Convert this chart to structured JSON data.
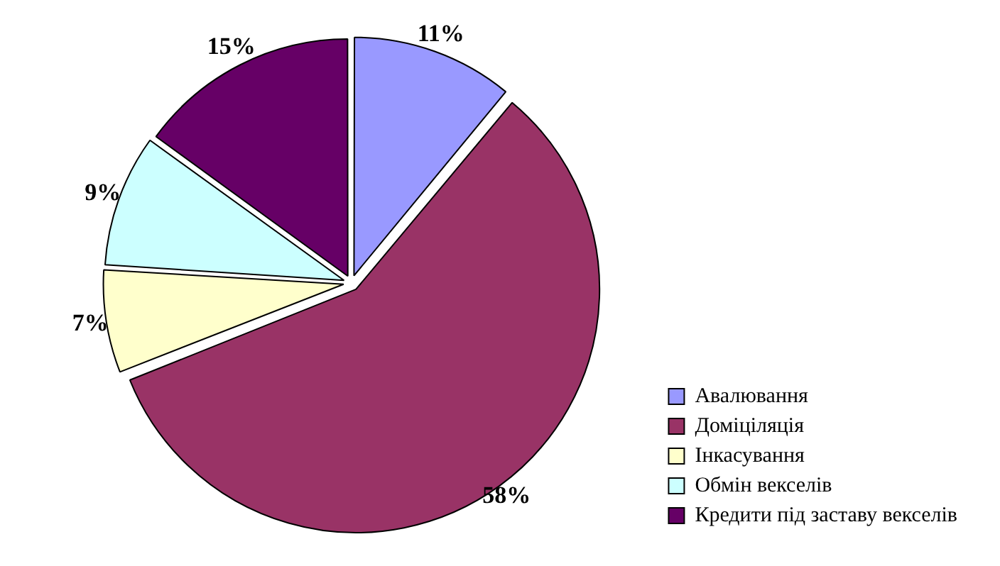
{
  "chart_data": {
    "type": "pie",
    "categories": [
      "Авалювання",
      "Доміціляція",
      "Інкасування",
      "Обмін векселів",
      "Кредити під заставу векселів"
    ],
    "values": [
      11,
      58,
      7,
      9,
      15
    ],
    "colors": [
      "#9999ff",
      "#993366",
      "#ffffcc",
      "#ccffff",
      "#660066"
    ],
    "value_labels": [
      "11%",
      "58%",
      "7%",
      "9%",
      "15%"
    ],
    "legend": "bottom right"
  }
}
